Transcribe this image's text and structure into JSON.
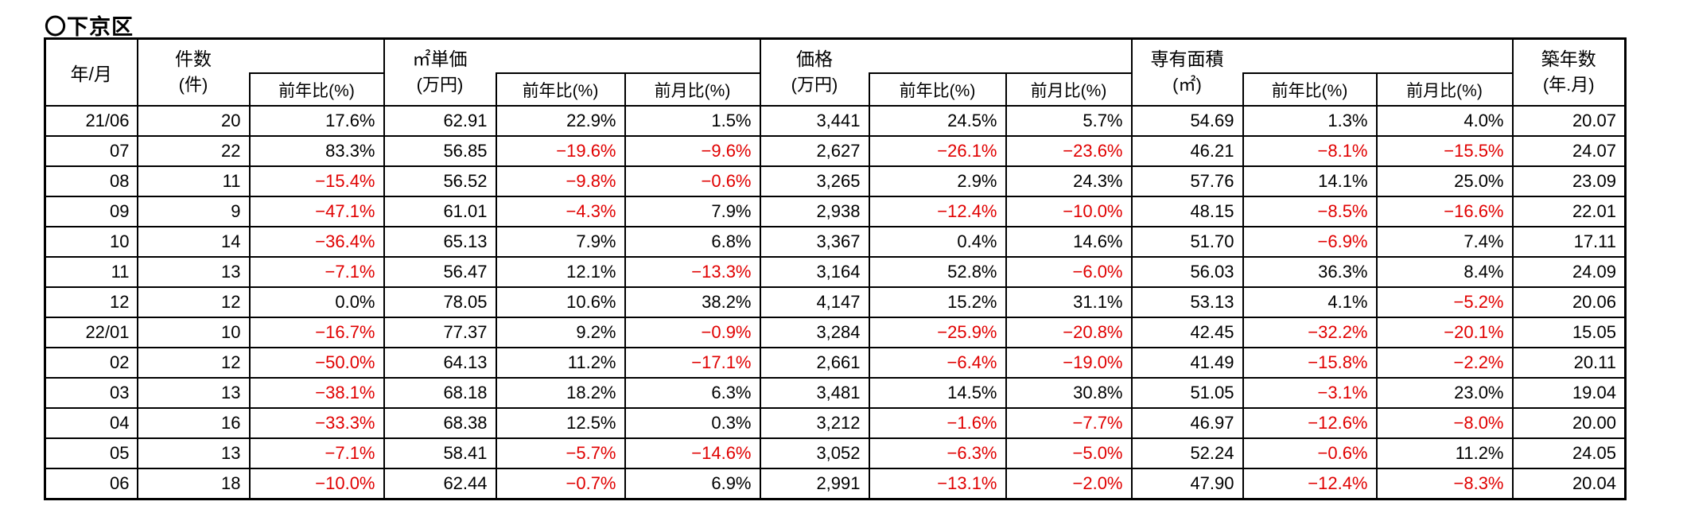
{
  "title": "〇下京区",
  "colors": {
    "negative_value": "#e00000",
    "text": "#000000",
    "border": "#000000",
    "background": "#ffffff"
  },
  "table": {
    "header": {
      "year_month": "年/月",
      "groups": [
        {
          "title": "件数",
          "unit": "(件)",
          "subs": [
            "前年比(%)"
          ]
        },
        {
          "title": "㎡単価",
          "unit": "(万円)",
          "subs": [
            "前年比(%)",
            "前月比(%)"
          ]
        },
        {
          "title": "価格",
          "unit": "(万円)",
          "subs": [
            "前年比(%)",
            "前月比(%)"
          ]
        },
        {
          "title": "専有面積",
          "unit": "(㎡)",
          "subs": [
            "前年比(%)",
            "前月比(%)"
          ]
        },
        {
          "title": "築年数",
          "unit": "(年.月)",
          "subs": []
        }
      ]
    },
    "rows": [
      [
        "21/06",
        "20",
        "17.6%",
        "62.91",
        "22.9%",
        "1.5%",
        "3,441",
        "24.5%",
        "5.7%",
        "54.69",
        "1.3%",
        "4.0%",
        "20.07"
      ],
      [
        "07",
        "22",
        "83.3%",
        "56.85",
        "−19.6%",
        "−9.6%",
        "2,627",
        "−26.1%",
        "−23.6%",
        "46.21",
        "−8.1%",
        "−15.5%",
        "24.07"
      ],
      [
        "08",
        "11",
        "−15.4%",
        "56.52",
        "−9.8%",
        "−0.6%",
        "3,265",
        "2.9%",
        "24.3%",
        "57.76",
        "14.1%",
        "25.0%",
        "23.09"
      ],
      [
        "09",
        "9",
        "−47.1%",
        "61.01",
        "−4.3%",
        "7.9%",
        "2,938",
        "−12.4%",
        "−10.0%",
        "48.15",
        "−8.5%",
        "−16.6%",
        "22.01"
      ],
      [
        "10",
        "14",
        "−36.4%",
        "65.13",
        "7.9%",
        "6.8%",
        "3,367",
        "0.4%",
        "14.6%",
        "51.70",
        "−6.9%",
        "7.4%",
        "17.11"
      ],
      [
        "11",
        "13",
        "−7.1%",
        "56.47",
        "12.1%",
        "−13.3%",
        "3,164",
        "52.8%",
        "−6.0%",
        "56.03",
        "36.3%",
        "8.4%",
        "24.09"
      ],
      [
        "12",
        "12",
        "0.0%",
        "78.05",
        "10.6%",
        "38.2%",
        "4,147",
        "15.2%",
        "31.1%",
        "53.13",
        "4.1%",
        "−5.2%",
        "20.06"
      ],
      [
        "22/01",
        "10",
        "−16.7%",
        "77.37",
        "9.2%",
        "−0.9%",
        "3,284",
        "−25.9%",
        "−20.8%",
        "42.45",
        "−32.2%",
        "−20.1%",
        "15.05"
      ],
      [
        "02",
        "12",
        "−50.0%",
        "64.13",
        "11.2%",
        "−17.1%",
        "2,661",
        "−6.4%",
        "−19.0%",
        "41.49",
        "−15.8%",
        "−2.2%",
        "20.11"
      ],
      [
        "03",
        "13",
        "−38.1%",
        "68.18",
        "18.2%",
        "6.3%",
        "3,481",
        "14.5%",
        "30.8%",
        "51.05",
        "−3.1%",
        "23.0%",
        "19.04"
      ],
      [
        "04",
        "16",
        "−33.3%",
        "68.38",
        "12.5%",
        "0.3%",
        "3,212",
        "−1.6%",
        "−7.7%",
        "46.97",
        "−12.6%",
        "−8.0%",
        "20.00"
      ],
      [
        "05",
        "13",
        "−7.1%",
        "58.41",
        "−5.7%",
        "−14.6%",
        "3,052",
        "−6.3%",
        "−5.0%",
        "52.24",
        "−0.6%",
        "11.2%",
        "24.05"
      ],
      [
        "06",
        "18",
        "−10.0%",
        "62.44",
        "−0.7%",
        "6.9%",
        "2,991",
        "−13.1%",
        "−2.0%",
        "47.90",
        "−12.4%",
        "−8.3%",
        "20.04"
      ]
    ]
  }
}
